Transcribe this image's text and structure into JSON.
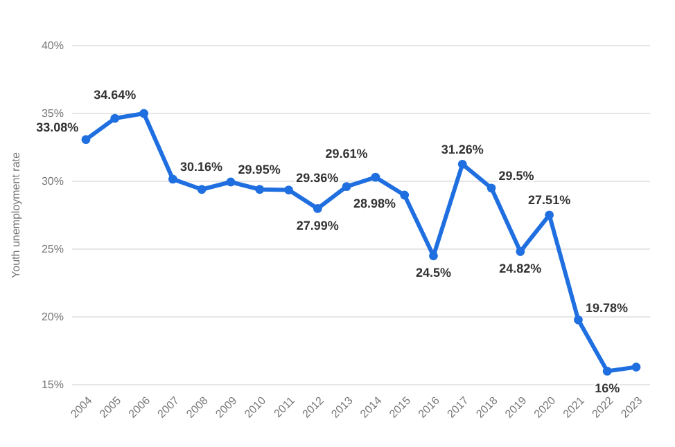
{
  "chart_data": {
    "type": "line",
    "ylabel": "Youth unemployment rate",
    "categories": [
      "2004",
      "2005",
      "2006",
      "2007",
      "2008",
      "2009",
      "2010",
      "2011",
      "2012",
      "2013",
      "2014",
      "2015",
      "2016",
      "2017",
      "2018",
      "2019",
      "2020",
      "2021",
      "2022",
      "2023"
    ],
    "series": [
      {
        "color": "#1f6fe0",
        "values": [
          33.08,
          34.64,
          35.0,
          30.16,
          29.4,
          29.95,
          29.4,
          29.36,
          27.99,
          29.61,
          30.3,
          28.98,
          24.5,
          31.26,
          29.5,
          24.82,
          27.51,
          19.78,
          16,
          16.3
        ],
        "value_labels": [
          "33.08%",
          "34.64%",
          null,
          "30.16%",
          null,
          "29.95%",
          null,
          "29.36%",
          "27.99%",
          "29.61%",
          null,
          "28.98%",
          "24.5%",
          "31.26%",
          "29.5%",
          "24.82%",
          "27.51%",
          "19.78%",
          "16%",
          null
        ]
      }
    ],
    "ylim": [
      15,
      40
    ],
    "yticks": [
      {
        "value": 15,
        "label": "15%"
      },
      {
        "value": 20,
        "label": "20%"
      },
      {
        "value": 25,
        "label": "25%"
      },
      {
        "value": 30,
        "label": "30%"
      },
      {
        "value": 35,
        "label": "35%"
      },
      {
        "value": 40,
        "label": "40%"
      }
    ],
    "grid": "y",
    "marker": "circle",
    "line_style": "solid"
  }
}
